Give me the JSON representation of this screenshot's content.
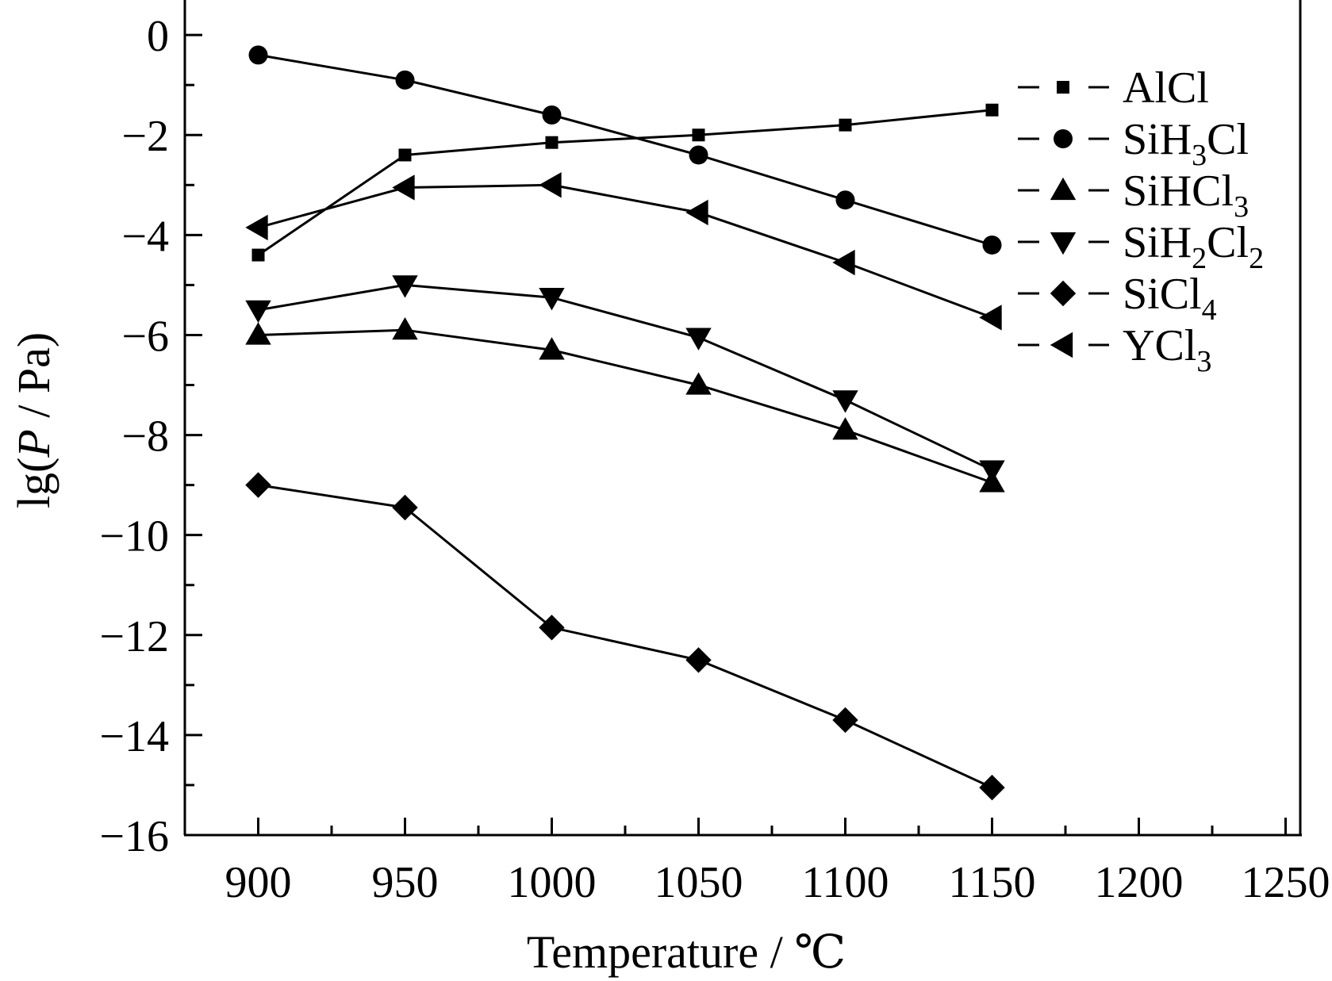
{
  "chart_data": {
    "type": "line",
    "xlabel": "Temperature / ℃",
    "ylabel": {
      "prefix": "lg(",
      "italic": "P",
      "suffix": " / Pa)"
    },
    "xlim": [
      875,
      1255
    ],
    "ylim": [
      -16,
      0.7
    ],
    "xticks": [
      900,
      950,
      1000,
      1050,
      1100,
      1150,
      1200,
      1250
    ],
    "yticks": [
      0,
      -2,
      -4,
      -6,
      -8,
      -10,
      -12,
      -14,
      -16
    ],
    "xtick_labels": [
      "900",
      "950",
      "1000",
      "1050",
      "1100",
      "1150",
      "1200",
      "1250"
    ],
    "ytick_labels": [
      "0",
      "−2",
      "−4",
      "−6",
      "−8",
      "−10",
      "−12",
      "−14",
      "−16"
    ],
    "legend_position": "top-right",
    "series": [
      {
        "name": "AlCl",
        "name_parts": [
          [
            "AlCl",
            ""
          ]
        ],
        "marker": "square",
        "x": [
          900,
          950,
          1000,
          1050,
          1100,
          1150
        ],
        "y": [
          -4.4,
          -2.4,
          -2.15,
          -2.0,
          -1.8,
          -1.5
        ]
      },
      {
        "name": "SiH3Cl",
        "name_parts": [
          [
            "SiH",
            "3"
          ],
          [
            "Cl",
            ""
          ]
        ],
        "marker": "circle",
        "x": [
          900,
          950,
          1000,
          1050,
          1100,
          1150
        ],
        "y": [
          -0.4,
          -0.9,
          -1.6,
          -2.4,
          -3.3,
          -4.2
        ]
      },
      {
        "name": "SiHCl3",
        "name_parts": [
          [
            "SiHCl",
            "3"
          ]
        ],
        "marker": "triangle-up",
        "x": [
          900,
          950,
          1000,
          1050,
          1100,
          1150
        ],
        "y": [
          -6.0,
          -5.9,
          -6.3,
          -7.0,
          -7.9,
          -8.95
        ]
      },
      {
        "name": "SiH2Cl2",
        "name_parts": [
          [
            "SiH",
            "2"
          ],
          [
            "Cl",
            "2"
          ]
        ],
        "marker": "triangle-down",
        "x": [
          900,
          950,
          1000,
          1050,
          1100,
          1150
        ],
        "y": [
          -5.5,
          -5.0,
          -5.25,
          -6.05,
          -7.3,
          -8.7
        ]
      },
      {
        "name": "SiCl4",
        "name_parts": [
          [
            "SiCl",
            "4"
          ]
        ],
        "marker": "diamond",
        "x": [
          900,
          950,
          1000,
          1050,
          1100,
          1150
        ],
        "y": [
          -9.0,
          -9.45,
          -11.85,
          -12.5,
          -13.7,
          -15.05
        ]
      },
      {
        "name": "YCl3",
        "name_parts": [
          [
            "YCl",
            "3"
          ]
        ],
        "marker": "triangle-left",
        "x": [
          900,
          950,
          1000,
          1050,
          1100,
          1150
        ],
        "y": [
          -3.85,
          -3.05,
          -3.0,
          -3.55,
          -4.55,
          -5.65
        ]
      }
    ]
  }
}
